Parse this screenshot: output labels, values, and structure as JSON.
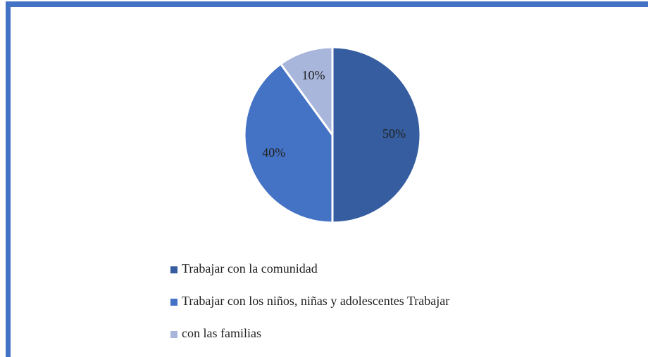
{
  "chart_data": {
    "type": "pie",
    "categories": [
      "Trabajar con la comunidad",
      "Trabajar con los niños, niñas y adolescentes Trabajar",
      "con las familias"
    ],
    "values": [
      50,
      40,
      10
    ],
    "value_labels": [
      "50%",
      "40%",
      "10%"
    ],
    "colors": [
      "#355d9f",
      "#4472c4",
      "#a9b6dc"
    ]
  }
}
